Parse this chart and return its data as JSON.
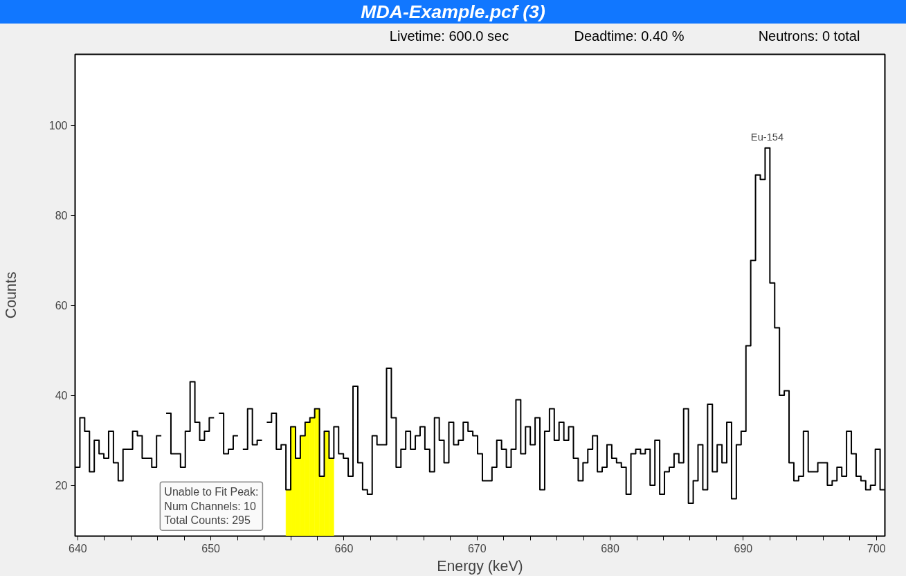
{
  "chart_data": {
    "type": "step",
    "title": "MDA-Example.pcf (3)",
    "xlabel": "Energy (keV)",
    "ylabel": "Counts",
    "annotations": [
      "Livetime: 600.0 sec",
      "Deadtime: 0.40 %",
      "Neutrons: 0 total",
      "Unable to Fit Peak:\nNum Channels: 10\nTotal Counts: 295",
      {
        "text": "Eu-154",
        "x": 691.8,
        "y": 95
      }
    ],
    "x": [
      639.98,
      640.34,
      640.7,
      641.06,
      641.42,
      641.78,
      642.14,
      642.5,
      642.86,
      643.22,
      643.58,
      643.94,
      644.3,
      644.66,
      645.02,
      645.38,
      645.74,
      646.1,
      646.46,
      646.82,
      647.18,
      647.54,
      647.9,
      648.26,
      648.62,
      648.98,
      649.34,
      649.7,
      650.06,
      650.42,
      650.78,
      651.14,
      651.5,
      651.86,
      652.22,
      652.58,
      652.94,
      653.3,
      653.66,
      654.02,
      654.38,
      654.74,
      655.1,
      655.46,
      655.82,
      656.18,
      656.54,
      656.9,
      657.26,
      657.62,
      657.98,
      658.34,
      658.7,
      659.06,
      659.42,
      659.78,
      660.14,
      660.5,
      660.86,
      661.22,
      661.58,
      661.94,
      662.3,
      662.66,
      663.02,
      663.38,
      663.74,
      664.1,
      664.46,
      664.82,
      665.18,
      665.54,
      665.9,
      666.26,
      666.62,
      666.98,
      667.34,
      667.7,
      668.06,
      668.42,
      668.78,
      669.14,
      669.5,
      669.86,
      670.22,
      670.58,
      670.94,
      671.3,
      671.66,
      672.02,
      672.38,
      672.74,
      673.1,
      673.46,
      673.82,
      674.18,
      674.54,
      674.9,
      675.26,
      675.62,
      675.98,
      676.34,
      676.7,
      677.06,
      677.42,
      677.78,
      678.14,
      678.5,
      678.86,
      679.22,
      679.58,
      679.94,
      680.3,
      680.66,
      681.02,
      681.38,
      681.74,
      682.1,
      682.46,
      682.82,
      683.18,
      683.54,
      683.9,
      684.26,
      684.62,
      684.98,
      685.34,
      685.7,
      686.06,
      686.42,
      686.78,
      687.14,
      687.5,
      687.86,
      688.22,
      688.58,
      688.94,
      689.3,
      689.66,
      690.02,
      690.38,
      690.74,
      691.1,
      691.46,
      691.82,
      692.18,
      692.54,
      692.9,
      693.26,
      693.62,
      693.98,
      694.34,
      694.7,
      695.06,
      695.42,
      695.78,
      696.14,
      696.5,
      696.86,
      697.22,
      697.58,
      697.94,
      698.3,
      698.66,
      699.02,
      699.38,
      699.74,
      700.1,
      700.46
    ],
    "series": [
      {
        "color": "#000000",
        "values": [
          24,
          35,
          32,
          23,
          30,
          27,
          26,
          32,
          25,
          21,
          28,
          28,
          32,
          31,
          26,
          26,
          24,
          31,
          null,
          36,
          27,
          27,
          24,
          32,
          43,
          34,
          30,
          32,
          35,
          null,
          36,
          27,
          28,
          31,
          null,
          28,
          37,
          29,
          30,
          null,
          34,
          36,
          28,
          29,
          19,
          33,
          26,
          31,
          34,
          35,
          37,
          22,
          32,
          26,
          33,
          27,
          26,
          22,
          42,
          25,
          19,
          18,
          31,
          29,
          29,
          46,
          35,
          24,
          28,
          32,
          28,
          31,
          33,
          28,
          23,
          35,
          30,
          25,
          34,
          29,
          30,
          34,
          32,
          31,
          27,
          21,
          21,
          24,
          30,
          28,
          24,
          28,
          39,
          27,
          33,
          29,
          35,
          19,
          32,
          37,
          30,
          34,
          30,
          33,
          26,
          21,
          25,
          28,
          31,
          23,
          24,
          29,
          26,
          25,
          24,
          18,
          27,
          28,
          27,
          28,
          20,
          30,
          18,
          23,
          24,
          27,
          25,
          37,
          16,
          21,
          29,
          19,
          38,
          23,
          29,
          25,
          34,
          17,
          29,
          32,
          51,
          70,
          89,
          88,
          95,
          65,
          55,
          40,
          41,
          25,
          21,
          22,
          32,
          23,
          23,
          25,
          25,
          20,
          21,
          24,
          22,
          32,
          27,
          22,
          21,
          19,
          20,
          28,
          19
        ]
      },
      {
        "type": "bar",
        "color": "#ffff00",
        "x": [
          655.82,
          656.18,
          656.54,
          656.9,
          657.26,
          657.62,
          657.98,
          658.34,
          658.7,
          659.06
        ],
        "values": [
          19,
          33,
          26,
          31,
          34,
          35,
          37,
          22,
          32,
          26
        ]
      }
    ],
    "xlim": [
      639.8,
      700.64
    ],
    "ylim": [
      8.7,
      115.8
    ],
    "xticks": [
      640,
      {
        "value": 642,
        "label": null
      },
      {
        "value": 644,
        "label": null
      },
      {
        "value": 646,
        "label": null
      },
      {
        "value": 648,
        "label": null
      },
      650,
      {
        "value": 652,
        "label": null
      },
      {
        "value": 654,
        "label": null
      },
      {
        "value": 656,
        "label": null
      },
      {
        "value": 658,
        "label": null
      },
      660,
      {
        "value": 662,
        "label": null
      },
      {
        "value": 664,
        "label": null
      },
      {
        "value": 666,
        "label": null
      },
      {
        "value": 668,
        "label": null
      },
      670,
      {
        "value": 672,
        "label": null
      },
      {
        "value": 674,
        "label": null
      },
      {
        "value": 676,
        "label": null
      },
      {
        "value": 678,
        "label": null
      },
      680,
      {
        "value": 682,
        "label": null
      },
      {
        "value": 684,
        "label": null
      },
      {
        "value": 686,
        "label": null
      },
      {
        "value": 688,
        "label": null
      },
      690,
      {
        "value": 692,
        "label": null
      },
      {
        "value": 694,
        "label": null
      },
      {
        "value": 696,
        "label": null
      },
      {
        "value": 698,
        "label": null
      },
      700
    ],
    "yticks": [
      20,
      40,
      60,
      80,
      100
    ]
  }
}
